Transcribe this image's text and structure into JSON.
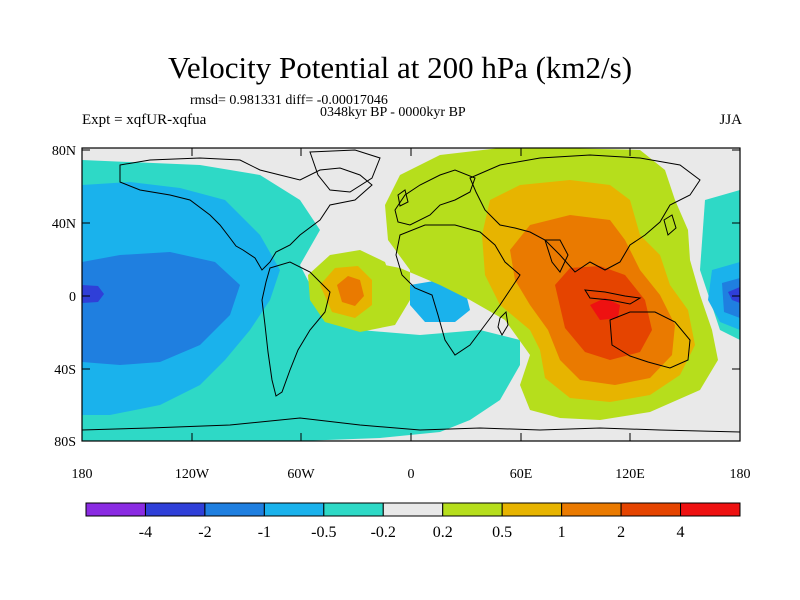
{
  "title": "Velocity Potential at 200 hPa (km2/s)",
  "stats": {
    "text": "rmsd= 0.981331 diff= -0.00017046"
  },
  "period": "0348kyr BP - 0000kyr BP",
  "experiment": "Expt = xqfUR-xqfua",
  "season": "JJA",
  "axes": {
    "y_ticks": [
      "80N",
      "40N",
      "0",
      "40S",
      "80S"
    ],
    "x_ticks": [
      "180",
      "120W",
      "60W",
      "0",
      "60E",
      "120E",
      "180"
    ]
  },
  "colorbar": {
    "labels": [
      "-4",
      "-2",
      "-1",
      "-0.5",
      "-0.2",
      "0.2",
      "0.5",
      "1",
      "2",
      "4"
    ],
    "colors": [
      "#8a2be2",
      "#2f3fd8",
      "#1f7fe0",
      "#1ab2ec",
      "#2ed9c6",
      "#e9e9e9",
      "#b6de1c",
      "#e7b400",
      "#ea7a00",
      "#e54400",
      "#ee1111"
    ]
  },
  "colors": {
    "land_outline": "#000000",
    "neutral": "#e9e9e9"
  }
}
